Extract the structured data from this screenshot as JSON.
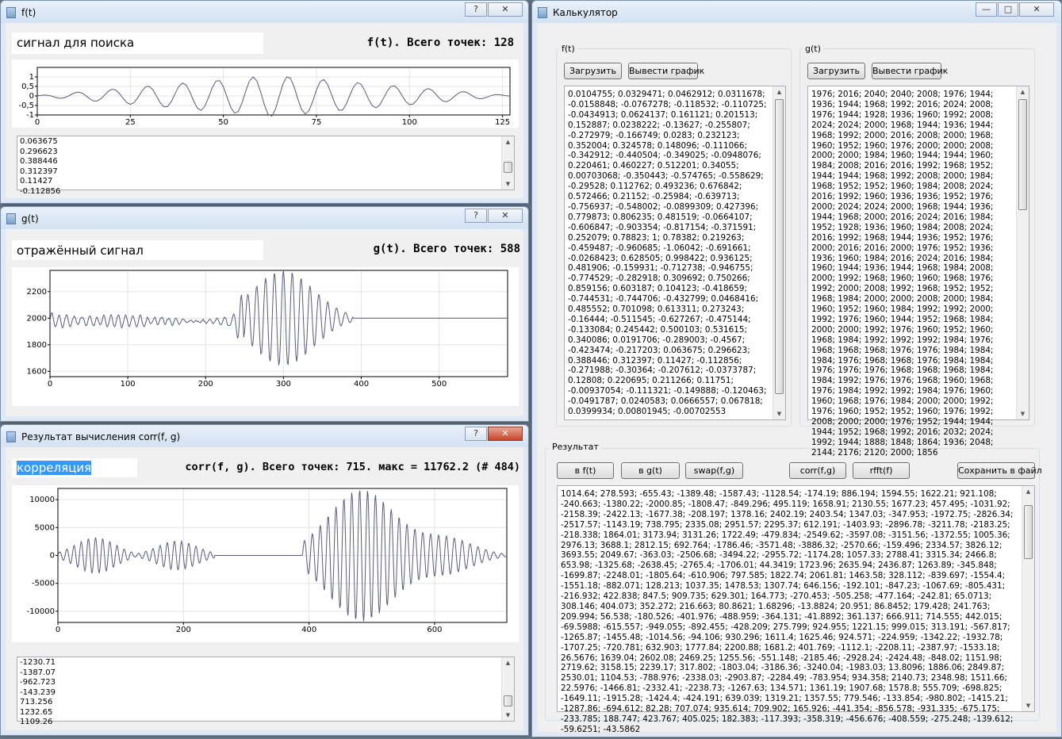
{
  "colors": {
    "curve": "#5a5a7a",
    "grid": "#e3e3e3"
  },
  "f_window": {
    "title": "f(t)",
    "label_value": "сигнал для поиска",
    "info": "f(t). Всего точек: 128",
    "values": [
      "0.063675",
      "0.296623",
      "0.388446",
      "0.312397",
      "0.11427",
      "-0.112856"
    ],
    "help_label": "?"
  },
  "g_window": {
    "title": "g(t)",
    "label_value": "отражённый сигнал",
    "info": "g(t). Всего точек: 588",
    "help_label": "?"
  },
  "corr_window": {
    "title": "Результат вычисления corr(f, g)",
    "label_value": "корреляция",
    "info": "corr(f, g). Всего точек: 715. макс = 11762.2 (# 484)",
    "values": [
      "-1230.71",
      "-1387.07",
      "-962.723",
      "-143.239",
      "713.256",
      "1232.65",
      "1109.26"
    ],
    "help_label": "?"
  },
  "calc_window": {
    "title": "Калькулятор",
    "f_group": {
      "title": "f(t)",
      "load_button": "Загрузить",
      "plot_button": "Вывести график",
      "text": "0.0104755; 0.0329471; 0.0462912; 0.0311678; -0.0158848; -0.0767278; -0.118532; -0.110725; -0.0434913; 0.0624137; 0.161121; 0.201513; 0.152887; 0.0238222; -0.13627; -0.255807; -0.272979; -0.166749; 0.0283; 0.232123; 0.352004; 0.324578; 0.148096; -0.111066; -0.342912; -0.440504; -0.349025; -0.0948076; 0.220461; 0.460227; 0.512201; 0.34055; 0.00703068; -0.350443; -0.574765; -0.558629; -0.29528; 0.112762; 0.493236; 0.676842; 0.572466; 0.21152; -0.25984; -0.639713; -0.756937; -0.548002; -0.0899309; 0.427396; 0.779873; 0.806235; 0.481519; -0.0664107; -0.606847; -0.903354; -0.817154; -0.371591; 0.252079; 0.78823; 1; 0.78382; 0.219263; -0.459487; -0.960685; -1.06042; -0.691661; -0.0268423; 0.628505; 0.998422; 0.936125; 0.481906; -0.159931; -0.712738; -0.946755; -0.774529; -0.282918; 0.309692; 0.750266; 0.859156; 0.603187; 0.104123; -0.418659; -0.744531; -0.744706; -0.432799; 0.0468416; 0.485552; 0.701098; 0.613311; 0.273243; -0.16444; -0.511545; -0.627267; -0.475144; -0.133084; 0.245442; 0.500103; 0.531615; 0.340086; 0.0191706; -0.289003; -0.4567; -0.423474; -0.217203; 0.063675; 0.296623; 0.388446; 0.312397; 0.11427; -0.112856; -0.271988; -0.30364; -0.207612; -0.0373787; 0.12808; 0.220695; 0.211266; 0.11751; -0.00937054; -0.111321; -0.149888; -0.120463; -0.0491787; 0.0240583; 0.0666557; 0.067818; 0.0399934; 0.00801945; -0.00702553"
    },
    "g_group": {
      "title": "g(t)",
      "load_button": "Загрузить",
      "plot_button": "Вывести график",
      "text": "1976; 2016; 2040; 2040; 2008; 1976; 1944; 1936; 1944; 1968; 1992; 2016; 2024; 2008; 1976; 1944; 1928; 1936; 1960; 1992; 2008; 2024; 2024; 2000; 1968; 1944; 1936; 1944; 1968; 1992; 2000; 2016; 2008; 2000; 1968; 1960; 1952; 1960; 1976; 2000; 2000; 2008; 2000; 2000; 1984; 1960; 1944; 1944; 1960; 1984; 2008; 2016; 2016; 1992; 1968; 1952; 1944; 1944; 1968; 1992; 2008; 2000; 1984; 1968; 1952; 1952; 1960; 1984; 2008; 2024; 2016; 1992; 1960; 1936; 1936; 1952; 1976; 2000; 2024; 2024; 2000; 1968; 1944; 1936; 1944; 1968; 2000; 2016; 2024; 2016; 1984; 1952; 1928; 1936; 1960; 1984; 2008; 2024; 2016; 1992; 1968; 1944; 1936; 1952; 1976; 2000; 2016; 2016; 2000; 1976; 1952; 1936; 1936; 1960; 1984; 2016; 2024; 2016; 1984; 1960; 1944; 1936; 1944; 1968; 1984; 2008; 2000; 1992; 1968; 1960; 1960; 1968; 1976; 1992; 2000; 2008; 1992; 1968; 1952; 1952; 1968; 1984; 2000; 2000; 2008; 2000; 1984; 1960; 1952; 1960; 1984; 1992; 1992; 2000; 1992; 1976; 1960; 1944; 1952; 1968; 1984; 2000; 2000; 1992; 1976; 1960; 1952; 1960; 1968; 1984; 1992; 1992; 1992; 1984; 1976; 1968; 1968; 1968; 1976; 1976; 1984; 1984; 1984; 1976; 1968; 1968; 1976; 1984; 1984; 1976; 1976; 1976; 1968; 1968; 1968; 1984; 1984; 1992; 1976; 1976; 1968; 1960; 1968; 1976; 1984; 1992; 1992; 1984; 1976; 1960; 1960; 1968; 1976; 1984; 2000; 2000; 1992; 1976; 1960; 1952; 1952; 1960; 1976; 1992; 2008; 2000; 2000; 1976; 1952; 1944; 1944; 1944; 1952; 1968; 1992; 2016; 2032; 2024; 1992; 1944; 1888; 1848; 1864; 1936; 2048; 2144; 2176; 2120; 2000; 1856"
    },
    "result": {
      "title": "Результат",
      "to_f_button": "в f(t)",
      "to_g_button": "в g(t)",
      "swap_button": "swap(f,g)",
      "corr_button": "corr(f,g)",
      "rfft_button": "rfft(f)",
      "save_button": "Сохранить в файл",
      "text": "1014.64; 278.593; -655.43; -1389.48; -1587.43; -1128.54; -174.19; 886.194; 1594.55; 1622.21; 921.108; -240.663; -1380.22; -2000.85; -1808.47; -849.296; 495.119; 1658.91; 2130.55; 1677.23; 457.495; -1031.92; -2158.39; -2422.13; -1677.38; -208.197; 1378.16; 2402.19; 2403.54; 1347.03; -347.953; -1972.75; -2826.34; -2517.57; -1143.19; 738.795; 2335.08; 2951.57; 2295.37; 612.191; -1403.93; -2896.78; -3211.78; -2183.25; -218.338; 1864.01; 3173.94; 3131.26; 1722.49; -479.834; -2549.62; -3597.08; -3151.56; -1372.55; 1005.36; 2976.13; 3688.1; 2812.15; 692.764; -1786.46; -3571.48; -3886.32; -2570.66; -159.496; 2334.57; 3826.12; 3693.55; 2049.67; -363.03; -2506.68; -3494.22; -2955.72; -1174.28; 1057.33; 2788.41; 3315.34; 2466.8; 653.98; -1325.68; -2638.45; -2765.4; -1706.01; 44.3419; 1723.96; 2635.94; 2436.87; 1263.89; -345.848; -1699.87; -2248.01; -1805.64; -610.906; 797.585; 1822.74; 2061.81; 1463.58; 328.112; -839.697; -1554.4; -1551.18; -882.071; 128.213; 1037.35; 1478.53; 1307.74; 646.156; -192.101; -847.23; -1067.69; -805.431; -216.932; 422.838; 847.5; 909.735; 629.301; 164.773; -270.453; -505.258; -477.164; -242.81; 65.0713; 308.146; 404.073; 352.272; 216.663; 80.8621; 1.68296; -13.8824; 20.951; 86.8452; 179.428; 241.763; 209.994; 56.538; -180.526; -401.976; -488.959; -364.131; -41.8892; 361.137; 666.911; 714.555; 442.015; -69.5988; -615.557; -949.055; -892.455; -428.209; 275.799; 924.955; 1221.15; 999.015; 313.191; -567.817; -1265.87; -1455.48; -1014.56; -94.106; 930.296; 1611.4; 1625.46; 924.571; -224.959; -1342.22; -1932.78; -1707.25; -720.781; 632.903; 1777.84; 2200.88; 1681.2; 401.769; -1112.1; -2208.11; -2387.97; -1533.18; 26.5676; 1639.04; 2602.08; 2469.25; 1255.56; -551.148; -2185.46; -2928.24; -2424.48; -848.02; 1151.98; 2719.62; 3158.15; 2239.17; 317.802; -1803.04; -3186.36; -3240.04; -1983.03; 13.8096; 1886.06; 2849.87; 2530.01; 1104.53; -788.976; -2338.03; -2903.87; -2284.49; -783.954; 934.358; 2140.73; 2348.98; 1511.66; 22.5976; -1466.81; -2332.41; -2238.73; -1267.63; 134.571; 1361.19; 1907.68; 1578.8; 555.709; -698.825; -1649.11; -1915.28; -1424.4; -424.191; 639.039; 1319.21; 1357.55; 779.546; -133.854; -980.802; -1415.21; -1287.86; -694.612; 82.28; 707.074; 935.614; 709.902; 165.926; -441.354; -856.578; -931.335; -675.175; -233.785; 188.747; 423.767; 405.025; 182.383; -117.393; -358.319; -456.676; -408.559; -275.248; -139.612; -59.6251; -43.5862"
    },
    "minimize_label": "—",
    "maximize_label": "□",
    "close_label": "✕"
  }
}
